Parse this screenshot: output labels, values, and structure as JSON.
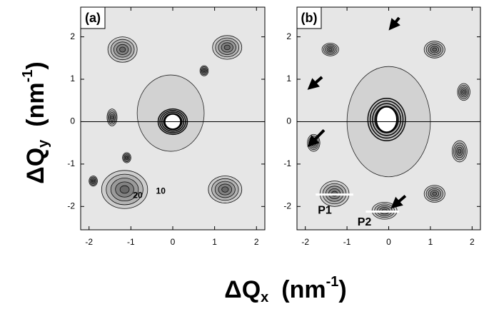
{
  "chart_data": [
    {
      "type": "contour",
      "panel_label": "(a)",
      "xlim": [
        -2.2,
        2.2
      ],
      "ylim": [
        -2.55,
        2.7
      ],
      "xticks": [
        -2,
        -1,
        0,
        1,
        2
      ],
      "yticks": [
        -2,
        -1,
        0,
        1,
        2
      ],
      "annotations": [
        "20",
        "10"
      ]
    },
    {
      "type": "contour",
      "panel_label": "(b)",
      "xlim": [
        -2.2,
        2.2
      ],
      "ylim": [
        -2.55,
        2.7
      ],
      "xticks": [
        -2,
        -1,
        0,
        1,
        2
      ],
      "yticks": [
        -2,
        -1,
        0,
        1,
        2
      ],
      "annotations": [
        "P1",
        "P2"
      ]
    }
  ],
  "x_label": {
    "symbol": "ΔQ",
    "sub": "x",
    "unit": "(nm",
    "sup": "-1",
    "close": ")"
  },
  "y_label": {
    "symbol": "ΔQ",
    "sub": "y",
    "unit": "(nm",
    "sup": "-1",
    "close": ")"
  }
}
